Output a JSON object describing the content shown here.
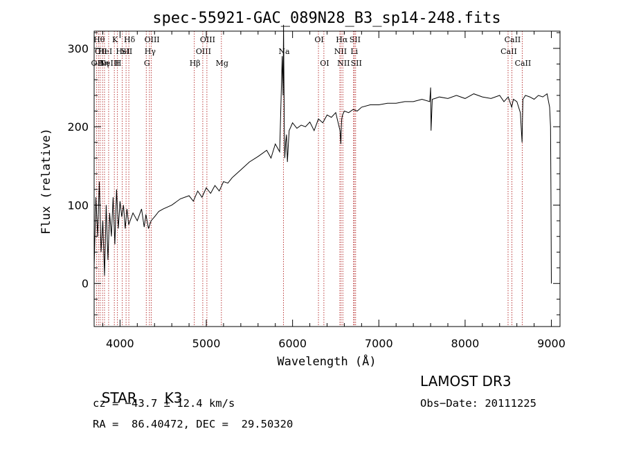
{
  "chart_data": {
    "type": "line",
    "title": "spec-55921-GAC_089N28_B3_sp14-248.fits",
    "xlabel": "Wavelength (Å)",
    "ylabel": "Flux (relative)",
    "xlim": [
      3700,
      9100
    ],
    "ylim": [
      -55,
      322
    ],
    "xticks": [
      4000,
      5000,
      6000,
      7000,
      8000,
      9000
    ],
    "yticks": [
      0,
      100,
      200,
      300
    ],
    "series": [
      {
        "name": "flux",
        "x": [
          3700,
          3720,
          3740,
          3760,
          3780,
          3800,
          3820,
          3840,
          3860,
          3880,
          3900,
          3920,
          3940,
          3960,
          3980,
          4000,
          4020,
          4040,
          4060,
          4080,
          4100,
          4150,
          4200,
          4250,
          4280,
          4300,
          4330,
          4360,
          4400,
          4450,
          4500,
          4600,
          4700,
          4800,
          4850,
          4900,
          4950,
          5000,
          5050,
          5100,
          5150,
          5200,
          5250,
          5300,
          5400,
          5500,
          5600,
          5700,
          5750,
          5800,
          5850,
          5880,
          5890,
          5895,
          5900,
          5905,
          5910,
          5920,
          5930,
          5940,
          5960,
          5980,
          6000,
          6050,
          6100,
          6150,
          6200,
          6250,
          6300,
          6350,
          6400,
          6450,
          6500,
          6550,
          6560,
          6565,
          6570,
          6580,
          6600,
          6650,
          6700,
          6750,
          6800,
          6900,
          7000,
          7100,
          7200,
          7300,
          7400,
          7500,
          7590,
          7600,
          7605,
          7620,
          7650,
          7700,
          7800,
          7900,
          8000,
          8100,
          8200,
          8300,
          8400,
          8450,
          8500,
          8540,
          8560,
          8600,
          8640,
          8660,
          8665,
          8670,
          8700,
          8750,
          8800,
          8850,
          8900,
          8950,
          8980,
          8990,
          8995,
          9000
        ],
        "y": [
          20,
          110,
          60,
          130,
          40,
          80,
          10,
          100,
          30,
          90,
          60,
          110,
          50,
          120,
          70,
          105,
          85,
          100,
          70,
          95,
          75,
          90,
          80,
          95,
          72,
          88,
          70,
          80,
          85,
          92,
          95,
          100,
          108,
          112,
          105,
          118,
          110,
          122,
          115,
          125,
          118,
          130,
          128,
          135,
          145,
          155,
          162,
          170,
          160,
          178,
          168,
          290,
          240,
          330,
          260,
          190,
          160,
          180,
          190,
          155,
          195,
          200,
          205,
          198,
          202,
          200,
          206,
          195,
          210,
          205,
          215,
          212,
          218,
          195,
          178,
          200,
          210,
          215,
          220,
          218,
          222,
          220,
          225,
          228,
          228,
          230,
          230,
          232,
          232,
          235,
          232,
          250,
          195,
          235,
          236,
          238,
          236,
          240,
          236,
          242,
          238,
          236,
          240,
          232,
          238,
          225,
          235,
          232,
          218,
          180,
          210,
          235,
          240,
          238,
          235,
          240,
          238,
          242,
          225,
          200,
          120,
          0
        ]
      }
    ],
    "lines": [
      {
        "x": 3727,
        "label": "OII",
        "row": 2
      },
      {
        "x": 3750,
        "label": "Hθ",
        "row": 0
      },
      {
        "x": 3770,
        "label": "OII",
        "row": 1
      },
      {
        "x": 3797,
        "label": "Hη",
        "row": 2
      },
      {
        "x": 3820,
        "label": "HeI",
        "row": 1
      },
      {
        "x": 3868,
        "label": "NeIII",
        "row": 2
      },
      {
        "x": 3934,
        "label": "K",
        "row": 0
      },
      {
        "x": 3970,
        "label": "H",
        "row": 2
      },
      {
        "x": 4026,
        "label": "HeI",
        "row": 1
      },
      {
        "x": 4070,
        "label": "SII",
        "row": 1
      },
      {
        "x": 4102,
        "label": "Hδ",
        "row": 0
      },
      {
        "x": 4304,
        "label": "G",
        "row": 2
      },
      {
        "x": 4341,
        "label": "Hγ",
        "row": 1
      },
      {
        "x": 4363,
        "label": "OIII",
        "row": 0
      },
      {
        "x": 4861,
        "label": "Hβ",
        "row": 2
      },
      {
        "x": 4959,
        "label": "OIII",
        "row": 1
      },
      {
        "x": 5007,
        "label": "OIII",
        "row": 0
      },
      {
        "x": 5175,
        "label": "Mg",
        "row": 2
      },
      {
        "x": 5894,
        "label": "Na",
        "row": 1
      },
      {
        "x": 6300,
        "label": "OI",
        "row": 0
      },
      {
        "x": 6363,
        "label": "OI",
        "row": 2
      },
      {
        "x": 6548,
        "label": "NII",
        "row": 1
      },
      {
        "x": 6563,
        "label": "Hα",
        "row": 0
      },
      {
        "x": 6583,
        "label": "NII",
        "row": 2
      },
      {
        "x": 6707,
        "label": "Li",
        "row": 1
      },
      {
        "x": 6716,
        "label": "SII",
        "row": 0
      },
      {
        "x": 6731,
        "label": "SII",
        "row": 2
      },
      {
        "x": 8498,
        "label": "CaII",
        "row": 1
      },
      {
        "x": 8542,
        "label": "CaII",
        "row": 0
      },
      {
        "x": 8662,
        "label": "CaII",
        "row": 2
      }
    ]
  },
  "footer": {
    "class_label": "STAR",
    "subclass": "K3",
    "survey": "LAMOST DR3",
    "redshift": "cz = −43.7 ± 12.4 km/s",
    "obs_date": "Obs−Date: 20111225",
    "coords": "RA =  86.40472, DEC =  29.50320"
  }
}
